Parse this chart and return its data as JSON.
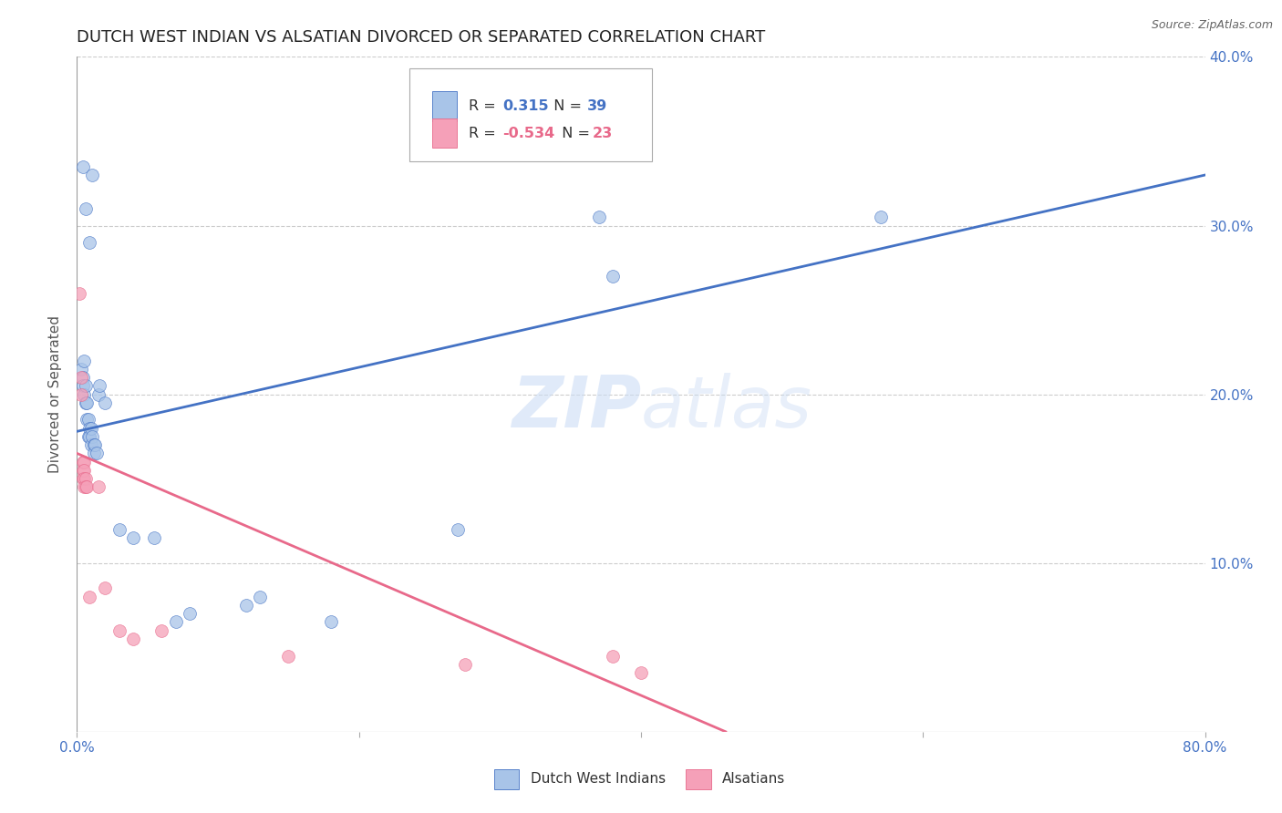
{
  "title": "DUTCH WEST INDIAN VS ALSATIAN DIVORCED OR SEPARATED CORRELATION CHART",
  "source": "Source: ZipAtlas.com",
  "ylabel": "Divorced or Separated",
  "watermark": "ZIPatlas",
  "xlim": [
    0.0,
    0.8
  ],
  "ylim": [
    0.0,
    0.4
  ],
  "xticks": [
    0.0,
    0.2,
    0.4,
    0.6,
    0.8
  ],
  "xticklabels": [
    "0.0%",
    "",
    "",
    "",
    "80.0%"
  ],
  "yticks": [
    0.0,
    0.1,
    0.2,
    0.3,
    0.4
  ],
  "blue_scatter": [
    [
      0.004,
      0.335
    ],
    [
      0.006,
      0.31
    ],
    [
      0.009,
      0.29
    ],
    [
      0.011,
      0.33
    ],
    [
      0.003,
      0.215
    ],
    [
      0.004,
      0.21
    ],
    [
      0.004,
      0.205
    ],
    [
      0.005,
      0.22
    ],
    [
      0.005,
      0.2
    ],
    [
      0.006,
      0.195
    ],
    [
      0.006,
      0.205
    ],
    [
      0.007,
      0.195
    ],
    [
      0.007,
      0.185
    ],
    [
      0.008,
      0.185
    ],
    [
      0.008,
      0.175
    ],
    [
      0.009,
      0.18
    ],
    [
      0.009,
      0.175
    ],
    [
      0.01,
      0.18
    ],
    [
      0.01,
      0.17
    ],
    [
      0.011,
      0.175
    ],
    [
      0.012,
      0.17
    ],
    [
      0.012,
      0.165
    ],
    [
      0.013,
      0.17
    ],
    [
      0.014,
      0.165
    ],
    [
      0.015,
      0.2
    ],
    [
      0.016,
      0.205
    ],
    [
      0.02,
      0.195
    ],
    [
      0.03,
      0.12
    ],
    [
      0.04,
      0.115
    ],
    [
      0.055,
      0.115
    ],
    [
      0.07,
      0.065
    ],
    [
      0.08,
      0.07
    ],
    [
      0.12,
      0.075
    ],
    [
      0.13,
      0.08
    ],
    [
      0.18,
      0.065
    ],
    [
      0.27,
      0.12
    ],
    [
      0.37,
      0.305
    ],
    [
      0.38,
      0.27
    ],
    [
      0.57,
      0.305
    ]
  ],
  "pink_scatter": [
    [
      0.002,
      0.26
    ],
    [
      0.003,
      0.21
    ],
    [
      0.003,
      0.2
    ],
    [
      0.004,
      0.16
    ],
    [
      0.004,
      0.155
    ],
    [
      0.004,
      0.15
    ],
    [
      0.005,
      0.16
    ],
    [
      0.005,
      0.155
    ],
    [
      0.005,
      0.15
    ],
    [
      0.005,
      0.145
    ],
    [
      0.006,
      0.15
    ],
    [
      0.006,
      0.145
    ],
    [
      0.007,
      0.145
    ],
    [
      0.009,
      0.08
    ],
    [
      0.015,
      0.145
    ],
    [
      0.02,
      0.085
    ],
    [
      0.03,
      0.06
    ],
    [
      0.04,
      0.055
    ],
    [
      0.06,
      0.06
    ],
    [
      0.15,
      0.045
    ],
    [
      0.275,
      0.04
    ],
    [
      0.38,
      0.045
    ],
    [
      0.4,
      0.035
    ]
  ],
  "blue_line_x": [
    0.0,
    0.8
  ],
  "blue_line_y": [
    0.178,
    0.33
  ],
  "pink_line_x": [
    0.0,
    0.46
  ],
  "pink_line_y": [
    0.165,
    0.0
  ],
  "blue_color": "#4472c4",
  "pink_color": "#e8698a",
  "scatter_blue_color": "#a8c4e8",
  "scatter_pink_color": "#f5a0b8",
  "scatter_size": 100,
  "scatter_alpha": 0.75,
  "background_color": "#ffffff",
  "grid_color": "#cccccc",
  "title_fontsize": 13,
  "axis_label_fontsize": 11,
  "tick_fontsize": 11,
  "r_blue": "0.315",
  "n_blue": "39",
  "r_pink": "-0.534",
  "n_pink": "23"
}
